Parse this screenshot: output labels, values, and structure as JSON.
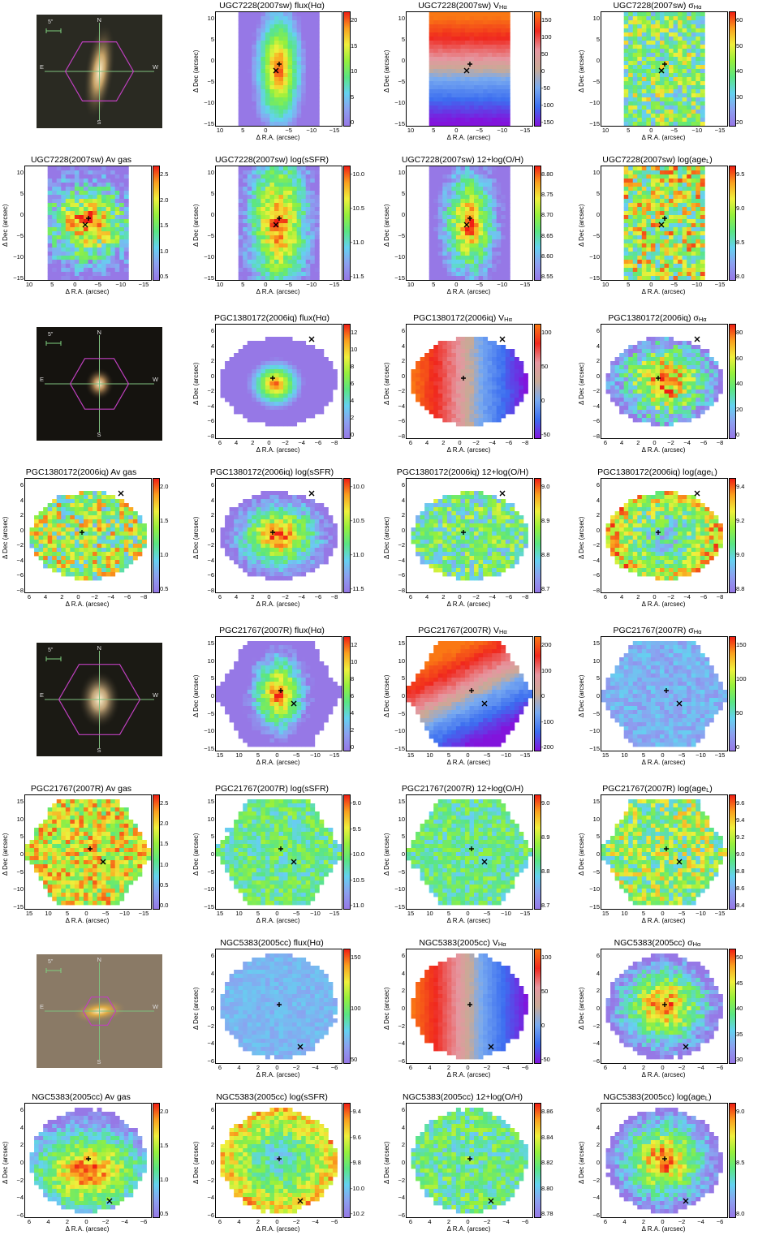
{
  "panels": {
    "u_flux": {
      "title": "UGC7228(2007sw) flux(Hα)",
      "cbar": [
        "0",
        "5",
        "10",
        "15",
        "20"
      ]
    },
    "u_v": {
      "title": "UGC7228(2007sw) V",
      "sub": "Hα",
      "cbar": [
        "-150",
        "-100",
        "-50",
        "0",
        "50",
        "100",
        "150"
      ]
    },
    "u_sig": {
      "title": "UGC7228(2007sw) σ",
      "sub": "Hα",
      "cbar": [
        "20",
        "30",
        "40",
        "50",
        "60"
      ]
    },
    "u_av": {
      "title": "UGC7228(2007sw) Av gas",
      "cbar": [
        "0.5",
        "1.0",
        "1.5",
        "2.0",
        "2.5"
      ]
    },
    "u_ssfr": {
      "title": "UGC7228(2007sw) log(sSFR)",
      "cbar": [
        "-11.5",
        "-11.0",
        "-10.5",
        "-10.0"
      ]
    },
    "u_oh": {
      "title": "UGC7228(2007sw) 12+log(O/H)",
      "cbar": [
        "8.55",
        "8.60",
        "8.65",
        "8.70",
        "8.75",
        "8.80"
      ]
    },
    "u_age": {
      "title": "UGC7228(2007sw) log(age",
      "sub": "L",
      "tail": ")",
      "cbar": [
        "8.0",
        "8.5",
        "9.0",
        "9.5"
      ]
    },
    "p1_flux": {
      "title": "PGC1380172(2006iq) flux(Hα)",
      "cbar": [
        "0",
        "2",
        "4",
        "6",
        "8",
        "10",
        "12"
      ]
    },
    "p1_v": {
      "title": "PGC1380172(2006iq) V",
      "sub": "Hα",
      "cbar": [
        "-50",
        "0",
        "50",
        "100"
      ]
    },
    "p1_sig": {
      "title": "PGC1380172(2006iq) σ",
      "sub": "Hα",
      "cbar": [
        "0",
        "20",
        "40",
        "60",
        "80"
      ]
    },
    "p1_av": {
      "title": "PGC1380172(2006iq) Av gas",
      "cbar": [
        "0.5",
        "1.0",
        "1.5",
        "2.0"
      ]
    },
    "p1_ssfr": {
      "title": "PGC1380172(2006iq) log(sSFR)",
      "cbar": [
        "-11.5",
        "-11.0",
        "-10.5",
        "-10.0"
      ]
    },
    "p1_oh": {
      "title": "PGC1380172(2006iq) 12+log(O/H)",
      "cbar": [
        "8.7",
        "8.8",
        "8.9",
        "9.0"
      ]
    },
    "p1_age": {
      "title": "PGC1380172(2006iq) log(age",
      "sub": "L",
      "tail": ")",
      "cbar": [
        "8.8",
        "9.0",
        "9.2",
        "9.4"
      ]
    },
    "p2_flux": {
      "title": "PGC21767(2007R) flux(Hα)",
      "cbar": [
        "0",
        "2",
        "4",
        "6",
        "8",
        "10",
        "12"
      ]
    },
    "p2_v": {
      "title": "PGC21767(2007R) V",
      "sub": "Hα",
      "cbar": [
        "-200",
        "-100",
        "0",
        "100",
        "200"
      ]
    },
    "p2_sig": {
      "title": "PGC21767(2007R) σ",
      "sub": "Hα",
      "cbar": [
        "0",
        "50",
        "100",
        "150"
      ]
    },
    "p2_av": {
      "title": "PGC21767(2007R) Av gas",
      "cbar": [
        "0.0",
        "0.5",
        "1.0",
        "1.5",
        "2.0",
        "2.5"
      ]
    },
    "p2_ssfr": {
      "title": "PGC21767(2007R) log(sSFR)",
      "cbar": [
        "-11.0",
        "-10.5",
        "-10.0",
        "-9.5",
        "-9.0"
      ]
    },
    "p2_oh": {
      "title": "PGC21767(2007R) 12+log(O/H)",
      "cbar": [
        "8.7",
        "8.8",
        "8.9",
        "9.0"
      ]
    },
    "p2_age": {
      "title": "PGC21767(2007R) log(age",
      "sub": "L",
      "tail": ")",
      "cbar": [
        "8.4",
        "8.6",
        "8.8",
        "9.0",
        "9.2",
        "9.4",
        "9.6"
      ]
    },
    "n_flux": {
      "title": "NGC5383(2005cc) flux(Hα)",
      "cbar": [
        "50",
        "100",
        "150"
      ]
    },
    "n_v": {
      "title": "NGC5383(2005cc) V",
      "sub": "Hα",
      "cbar": [
        "-50",
        "0",
        "50",
        "100"
      ]
    },
    "n_sig": {
      "title": "NGC5383(2005cc) σ",
      "sub": "Hα",
      "cbar": [
        "30",
        "35",
        "40",
        "45",
        "50"
      ]
    },
    "n_av": {
      "title": "NGC5383(2005cc) Av gas",
      "cbar": [
        "0.5",
        "1.0",
        "1.5",
        "2.0"
      ]
    },
    "n_ssfr": {
      "title": "NGC5383(2005cc) log(sSFR)",
      "cbar": [
        "-10.2",
        "-10.0",
        "-9.8",
        "-9.6",
        "-9.4"
      ]
    },
    "n_oh": {
      "title": "NGC5383(2005cc) 12+log(O/H)",
      "cbar": [
        "8.78",
        "8.80",
        "8.82",
        "8.84",
        "8.86"
      ]
    },
    "n_age": {
      "title": "NGC5383(2005cc) log(age",
      "sub": "L",
      "tail": ")",
      "cbar": [
        "8.0",
        "8.5",
        "9.0"
      ]
    }
  },
  "axes": {
    "xlabel": "Δ R.A. (arcsec)",
    "ylabel": "Δ Dec (arcsec)",
    "ugc_x": [
      "10",
      "5",
      "0",
      "−5",
      "−10",
      "−15"
    ],
    "ugc_y": [
      "−15",
      "−10",
      "−5",
      "0",
      "5",
      "10"
    ],
    "pgc1_x": [
      "6",
      "4",
      "2",
      "0",
      "−2",
      "−4",
      "−6",
      "−8"
    ],
    "pgc1_y": [
      "−8",
      "−6",
      "−4",
      "−2",
      "0",
      "2",
      "4",
      "6"
    ],
    "pgc2_x": [
      "15",
      "10",
      "5",
      "0",
      "−5",
      "−10",
      "−15"
    ],
    "pgc2_y": [
      "−15",
      "−10",
      "−5",
      "0",
      "5",
      "10",
      "15"
    ],
    "ngc_x": [
      "6",
      "4",
      "2",
      "0",
      "−2",
      "−4",
      "−6"
    ],
    "ngc_y": [
      "−6",
      "−4",
      "−2",
      "0",
      "2",
      "4",
      "6"
    ]
  },
  "images": {
    "compass": {
      "n": "N",
      "s": "S",
      "e": "E",
      "w": "W",
      "scale": "5\""
    }
  },
  "colors": {
    "hexagon": "#c040c0",
    "crosshair": "#7fc07f"
  }
}
